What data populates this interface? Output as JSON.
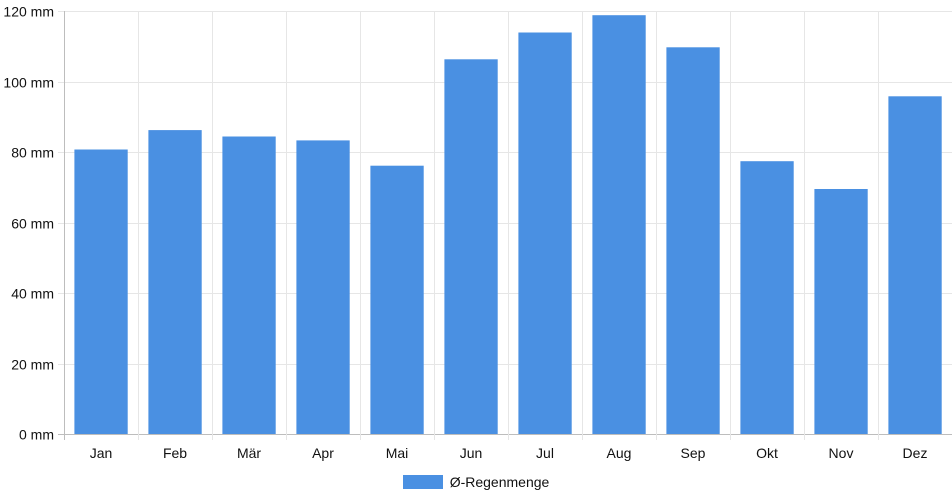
{
  "chart_data": {
    "type": "bar",
    "categories": [
      "Jan",
      "Feb",
      "Mär",
      "Apr",
      "Mai",
      "Jun",
      "Jul",
      "Aug",
      "Sep",
      "Okt",
      "Nov",
      "Dez"
    ],
    "series": [
      {
        "name": "Ø-Regenmenge",
        "values": [
          80.7,
          86.2,
          84.4,
          83.3,
          76.1,
          106.3,
          113.9,
          118.8,
          109.7,
          77.4,
          69.5,
          95.8
        ],
        "color": "#4a90e2"
      }
    ],
    "y_unit": "mm",
    "ylim": [
      0,
      120
    ],
    "y_ticks": [
      0,
      20,
      40,
      60,
      80,
      100,
      120
    ],
    "y_tick_labels": [
      "0 mm",
      "20 mm",
      "40 mm",
      "60 mm",
      "80 mm",
      "100 mm",
      "120 mm"
    ],
    "grid": true,
    "legend_position": "bottom-center",
    "title": "",
    "xlabel": "",
    "ylabel": ""
  }
}
